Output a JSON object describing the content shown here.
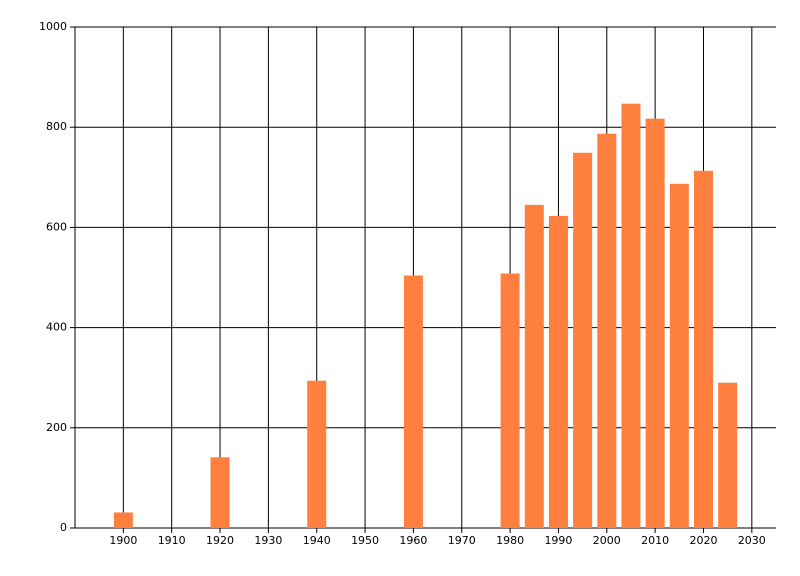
{
  "chart_data": {
    "type": "bar",
    "x": [
      1900,
      1920,
      1940,
      1960,
      1980,
      1985,
      1990,
      1995,
      2000,
      2005,
      2010,
      2015,
      2020,
      2025
    ],
    "values": [
      31,
      141,
      294,
      504,
      508,
      645,
      623,
      749,
      787,
      847,
      817,
      687,
      713,
      290
    ],
    "color": "#ff7f3f",
    "xlim": [
      1890,
      2035
    ],
    "xticks": [
      1900,
      1910,
      1920,
      1930,
      1940,
      1950,
      1960,
      1970,
      1980,
      1990,
      2000,
      2010,
      2020,
      2030
    ],
    "ylim": [
      0,
      1000
    ],
    "yticks": [
      0,
      200,
      400,
      600,
      800,
      1000
    ],
    "grid": true
  }
}
